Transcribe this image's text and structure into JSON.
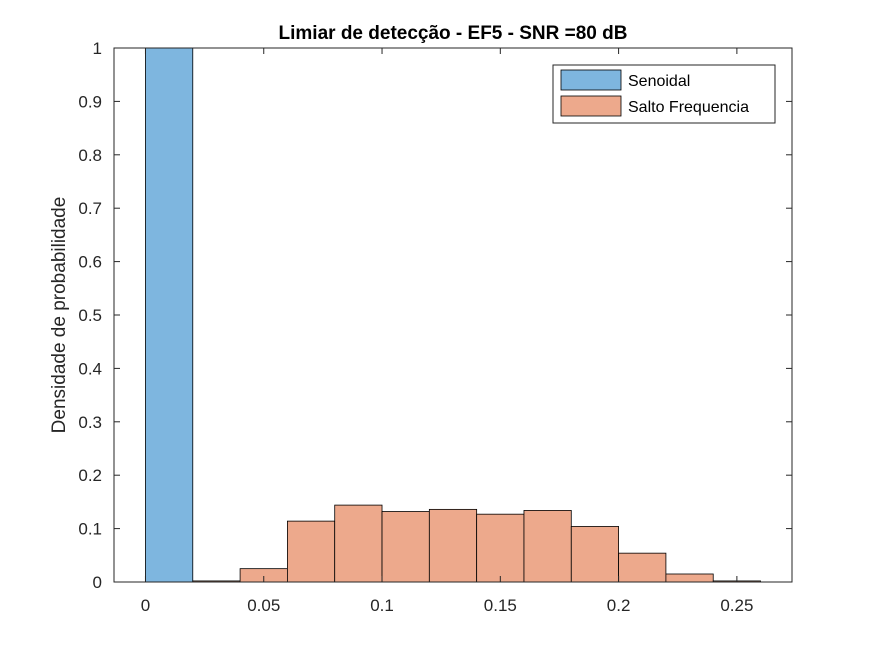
{
  "chart_data": {
    "type": "bar",
    "title": "Limiar de detecção - EF5 - SNR =80 dB",
    "xlabel": "",
    "ylabel": "Densidade de probabilidade",
    "xlim": [
      -0.0133,
      0.2733
    ],
    "ylim": [
      0,
      1
    ],
    "xticks": [
      "0",
      "0.05",
      "0.1",
      "0.15",
      "0.2",
      "0.25"
    ],
    "xtick_values": [
      0,
      0.05,
      0.1,
      0.15,
      0.2,
      0.25
    ],
    "yticks": [
      "0",
      "0.1",
      "0.2",
      "0.3",
      "0.4",
      "0.5",
      "0.6",
      "0.7",
      "0.8",
      "0.9",
      "1"
    ],
    "ytick_values": [
      0,
      0.1,
      0.2,
      0.3,
      0.4,
      0.5,
      0.6,
      0.7,
      0.8,
      0.9,
      1
    ],
    "grid": false,
    "legend_position": "top-right",
    "series": [
      {
        "name": "Senoidal",
        "color": "#7eb6df",
        "bins": [
          {
            "x0": 0,
            "x1": 0.02,
            "value": 1.0
          }
        ]
      },
      {
        "name": "Salto Frequencia",
        "color": "#eda98c",
        "bins": [
          {
            "x0": 0.02,
            "x1": 0.04,
            "value": 0.002
          },
          {
            "x0": 0.04,
            "x1": 0.06,
            "value": 0.025
          },
          {
            "x0": 0.06,
            "x1": 0.08,
            "value": 0.114
          },
          {
            "x0": 0.08,
            "x1": 0.1,
            "value": 0.144
          },
          {
            "x0": 0.1,
            "x1": 0.12,
            "value": 0.132
          },
          {
            "x0": 0.12,
            "x1": 0.14,
            "value": 0.136
          },
          {
            "x0": 0.14,
            "x1": 0.16,
            "value": 0.127
          },
          {
            "x0": 0.16,
            "x1": 0.18,
            "value": 0.134
          },
          {
            "x0": 0.18,
            "x1": 0.2,
            "value": 0.104
          },
          {
            "x0": 0.2,
            "x1": 0.22,
            "value": 0.054
          },
          {
            "x0": 0.22,
            "x1": 0.24,
            "value": 0.015
          },
          {
            "x0": 0.24,
            "x1": 0.26,
            "value": 0.002
          }
        ]
      }
    ]
  }
}
